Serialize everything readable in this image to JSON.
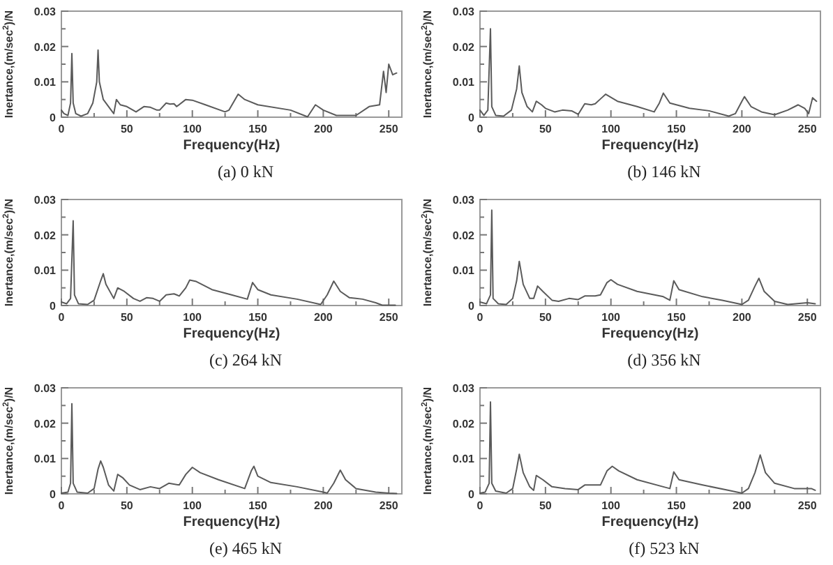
{
  "chart_data": [
    {
      "type": "line",
      "title": "(a) 0 kN",
      "xlabel": "Frequency(Hz)",
      "ylabel": "Inertance,(m/sec$^{2}$)/N",
      "xlim": [
        0,
        260
      ],
      "ylim": [
        0,
        0.03
      ],
      "xticks": [
        0,
        {
          "value": 25,
          "label": null
        },
        50,
        {
          "value": 75,
          "label": null
        },
        100,
        {
          "value": 125,
          "label": null
        },
        150,
        {
          "value": 175,
          "label": null
        },
        200,
        {
          "value": 225,
          "label": null
        },
        250
      ],
      "yticks": [
        0,
        {
          "value": 0.005,
          "label": null
        },
        0.01,
        {
          "value": 0.015,
          "label": null
        },
        0.02,
        {
          "value": 0.025,
          "label": null
        },
        0.03
      ],
      "marker": "none",
      "line_style": "solid",
      "series": [
        {
          "color": "#5a5a5a",
          "x": [
            0,
            2,
            5,
            7,
            8,
            9,
            11,
            15,
            20,
            24,
            27,
            28,
            29,
            32,
            38,
            40,
            42,
            45,
            50,
            57,
            63,
            68,
            73,
            75,
            80,
            83,
            86,
            88,
            95,
            100,
            110,
            125,
            128,
            135,
            140,
            150,
            175,
            188,
            194,
            200,
            210,
            225,
            235,
            243,
            246,
            248,
            250,
            253,
            256
          ],
          "values": [
            0.002,
            0.001,
            0.0005,
            0.004,
            0.018,
            0.004,
            0.001,
            0.0003,
            0.001,
            0.004,
            0.01,
            0.019,
            0.01,
            0.005,
            0.002,
            0.001,
            0.005,
            0.0035,
            0.003,
            0.0015,
            0.003,
            0.0028,
            0.002,
            0.002,
            0.004,
            0.0037,
            0.0038,
            0.003,
            0.005,
            0.0048,
            0.0035,
            0.0015,
            0.002,
            0.0065,
            0.005,
            0.0035,
            0.002,
            0.0001,
            0.0035,
            0.002,
            0.0005,
            0.0005,
            0.003,
            0.0035,
            0.013,
            0.007,
            0.015,
            0.012,
            0.0125
          ]
        }
      ]
    },
    {
      "type": "line",
      "title": "(b) 146 kN",
      "xlabel": "Frequency(Hz)",
      "ylabel": "Inertance,(m/sec$^{2}$)/N",
      "xlim": [
        0,
        260
      ],
      "ylim": [
        0,
        0.03
      ],
      "xticks": [
        0,
        {
          "value": 25,
          "label": null
        },
        50,
        {
          "value": 75,
          "label": null
        },
        100,
        {
          "value": 125,
          "label": null
        },
        150,
        {
          "value": 175,
          "label": null
        },
        200,
        {
          "value": 225,
          "label": null
        },
        250
      ],
      "yticks": [
        0,
        {
          "value": 0.005,
          "label": null
        },
        0.01,
        {
          "value": 0.015,
          "label": null
        },
        0.02,
        {
          "value": 0.025,
          "label": null
        },
        0.03
      ],
      "marker": "none",
      "line_style": "solid",
      "series": [
        {
          "color": "#5a5a5a",
          "x": [
            0,
            3,
            6,
            8,
            9,
            12,
            18,
            24,
            28,
            30,
            32,
            36,
            40,
            43,
            47,
            50,
            57,
            63,
            70,
            75,
            80,
            85,
            88,
            93,
            96,
            105,
            120,
            133,
            137,
            140,
            145,
            160,
            175,
            190,
            195,
            200,
            202,
            207,
            215,
            225,
            235,
            243,
            248,
            251,
            254,
            257
          ],
          "values": [
            0.002,
            0.0005,
            0.002,
            0.025,
            0.003,
            0.0005,
            0.0003,
            0.002,
            0.008,
            0.0145,
            0.007,
            0.003,
            0.0015,
            0.0045,
            0.0035,
            0.0025,
            0.0015,
            0.002,
            0.0018,
            0.0008,
            0.0038,
            0.0035,
            0.0038,
            0.0055,
            0.0065,
            0.0045,
            0.003,
            0.0015,
            0.004,
            0.0068,
            0.004,
            0.0025,
            0.0018,
            0.0003,
            0.001,
            0.0045,
            0.0058,
            0.003,
            0.0015,
            0.0007,
            0.002,
            0.0035,
            0.0025,
            0.001,
            0.0055,
            0.0045
          ]
        }
      ]
    },
    {
      "type": "line",
      "title": "(c) 264 kN",
      "xlabel": "Frequency(Hz)",
      "ylabel": "Inertance,(m/sec$^{2}$)/N",
      "xlim": [
        0,
        260
      ],
      "ylim": [
        0,
        0.03
      ],
      "xticks": [
        0,
        {
          "value": 25,
          "label": null
        },
        50,
        {
          "value": 75,
          "label": null
        },
        100,
        {
          "value": 125,
          "label": null
        },
        150,
        {
          "value": 175,
          "label": null
        },
        200,
        {
          "value": 225,
          "label": null
        },
        250
      ],
      "yticks": [
        0,
        {
          "value": 0.005,
          "label": null
        },
        0.01,
        {
          "value": 0.015,
          "label": null
        },
        0.02,
        {
          "value": 0.025,
          "label": null
        },
        0.03
      ],
      "marker": "none",
      "line_style": "solid",
      "series": [
        {
          "color": "#5a5a5a",
          "x": [
            0,
            4,
            7,
            9,
            10,
            13,
            20,
            25,
            30,
            32,
            34,
            40,
            43,
            48,
            55,
            60,
            65,
            70,
            75,
            80,
            86,
            90,
            95,
            98,
            103,
            115,
            130,
            142,
            146,
            150,
            160,
            180,
            198,
            203,
            208,
            213,
            220,
            230,
            240,
            245,
            255
          ],
          "values": [
            0.001,
            0.0005,
            0.002,
            0.024,
            0.003,
            0.0005,
            0.0003,
            0.0015,
            0.007,
            0.009,
            0.006,
            0.002,
            0.005,
            0.004,
            0.002,
            0.0012,
            0.0022,
            0.002,
            0.0012,
            0.003,
            0.0033,
            0.0027,
            0.005,
            0.0072,
            0.0068,
            0.0045,
            0.003,
            0.0018,
            0.0065,
            0.0045,
            0.003,
            0.0018,
            0.0003,
            0.003,
            0.0069,
            0.004,
            0.0022,
            0.0018,
            0.0008,
            0.0001,
            0.0001
          ]
        }
      ]
    },
    {
      "type": "line",
      "title": "(d) 356 kN",
      "xlabel": "Frequency(Hz)",
      "ylabel": "Inertance,(m/sec$^{2}$)/N",
      "xlim": [
        0,
        260
      ],
      "ylim": [
        0,
        0.03
      ],
      "xticks": [
        0,
        {
          "value": 25,
          "label": null
        },
        50,
        {
          "value": 75,
          "label": null
        },
        100,
        {
          "value": 125,
          "label": null
        },
        150,
        {
          "value": 175,
          "label": null
        },
        200,
        {
          "value": 225,
          "label": null
        },
        250
      ],
      "yticks": [
        0,
        {
          "value": 0.005,
          "label": null
        },
        0.01,
        {
          "value": 0.015,
          "label": null
        },
        0.02,
        {
          "value": 0.025,
          "label": null
        },
        0.03
      ],
      "marker": "none",
      "line_style": "solid",
      "series": [
        {
          "color": "#5a5a5a",
          "x": [
            0,
            5,
            8,
            9,
            10,
            14,
            20,
            25,
            28,
            30,
            33,
            38,
            41,
            44,
            48,
            55,
            60,
            68,
            75,
            80,
            88,
            92,
            97,
            100,
            105,
            120,
            140,
            145,
            148,
            152,
            170,
            185,
            200,
            205,
            210,
            213,
            217,
            225,
            235,
            250,
            256
          ],
          "values": [
            0.001,
            0.0005,
            0.003,
            0.027,
            0.002,
            0.0005,
            0.0003,
            0.002,
            0.007,
            0.0125,
            0.006,
            0.002,
            0.002,
            0.0055,
            0.004,
            0.0015,
            0.0012,
            0.002,
            0.0017,
            0.0027,
            0.0027,
            0.003,
            0.0065,
            0.0073,
            0.006,
            0.004,
            0.0025,
            0.0015,
            0.007,
            0.0045,
            0.0025,
            0.0015,
            0.0003,
            0.0015,
            0.0055,
            0.0077,
            0.004,
            0.0012,
            0.0003,
            0.0008,
            0.0005
          ]
        }
      ]
    },
    {
      "type": "line",
      "title": "(e) 465 kN",
      "xlabel": "Frequency(Hz)",
      "ylabel": "Inertance,(m/sec$^{2}$)/N",
      "xlim": [
        0,
        260
      ],
      "ylim": [
        0,
        0.03
      ],
      "xticks": [
        0,
        {
          "value": 25,
          "label": null
        },
        50,
        {
          "value": 75,
          "label": null
        },
        100,
        {
          "value": 125,
          "label": null
        },
        150,
        {
          "value": 175,
          "label": null
        },
        200,
        {
          "value": 225,
          "label": null
        },
        250
      ],
      "yticks": [
        0,
        {
          "value": 0.005,
          "label": null
        },
        0.01,
        {
          "value": 0.015,
          "label": null
        },
        0.02,
        {
          "value": 0.025,
          "label": null
        },
        0.03
      ],
      "marker": "none",
      "line_style": "solid",
      "series": [
        {
          "color": "#5a5a5a",
          "x": [
            0,
            5,
            7,
            8,
            9,
            12,
            20,
            25,
            28,
            30,
            32,
            36,
            40,
            43,
            47,
            52,
            60,
            68,
            75,
            82,
            90,
            95,
            100,
            106,
            120,
            140,
            145,
            147,
            150,
            160,
            180,
            200,
            203,
            208,
            213,
            217,
            225,
            240,
            250,
            256
          ],
          "values": [
            0.0002,
            0.0005,
            0.003,
            0.0255,
            0.003,
            0.0005,
            0.0002,
            0.0015,
            0.007,
            0.0093,
            0.0075,
            0.0025,
            0.0008,
            0.0055,
            0.0045,
            0.0025,
            0.0012,
            0.002,
            0.0015,
            0.003,
            0.0025,
            0.0055,
            0.0075,
            0.006,
            0.004,
            0.0015,
            0.0065,
            0.0078,
            0.005,
            0.0032,
            0.002,
            0.0005,
            0.0002,
            0.003,
            0.0067,
            0.004,
            0.0015,
            0.0005,
            0.0002,
            0.0001
          ]
        }
      ]
    },
    {
      "type": "line",
      "title": "(f) 523 kN",
      "xlabel": "Frequency(Hz)",
      "ylabel": "Inertance,(m/sec$^{2}$)/N",
      "xlim": [
        0,
        260
      ],
      "ylim": [
        0,
        0.03
      ],
      "xticks": [
        0,
        {
          "value": 25,
          "label": null
        },
        50,
        {
          "value": 75,
          "label": null
        },
        100,
        {
          "value": 125,
          "label": null
        },
        150,
        {
          "value": 175,
          "label": null
        },
        200,
        {
          "value": 225,
          "label": null
        },
        250
      ],
      "yticks": [
        0,
        {
          "value": 0.005,
          "label": null
        },
        0.01,
        {
          "value": 0.015,
          "label": null
        },
        0.02,
        {
          "value": 0.025,
          "label": null
        },
        0.03
      ],
      "marker": "none",
      "line_style": "solid",
      "series": [
        {
          "color": "#5a5a5a",
          "x": [
            0,
            4,
            7,
            8,
            9,
            12,
            20,
            25,
            28,
            30,
            33,
            38,
            41,
            43,
            48,
            55,
            65,
            75,
            80,
            86,
            92,
            97,
            101,
            106,
            120,
            140,
            145,
            148,
            152,
            170,
            190,
            200,
            205,
            210,
            214,
            218,
            225,
            240,
            250,
            253,
            256
          ],
          "values": [
            0.0002,
            0.0005,
            0.003,
            0.026,
            0.003,
            0.0008,
            0.0002,
            0.0015,
            0.007,
            0.0112,
            0.006,
            0.002,
            0.001,
            0.0052,
            0.004,
            0.002,
            0.0015,
            0.0012,
            0.0025,
            0.0025,
            0.0025,
            0.0065,
            0.0078,
            0.0065,
            0.004,
            0.002,
            0.0015,
            0.0062,
            0.004,
            0.0025,
            0.001,
            0.0002,
            0.0015,
            0.006,
            0.011,
            0.006,
            0.003,
            0.0015,
            0.0015,
            0.0015,
            0.001
          ]
        }
      ]
    }
  ]
}
